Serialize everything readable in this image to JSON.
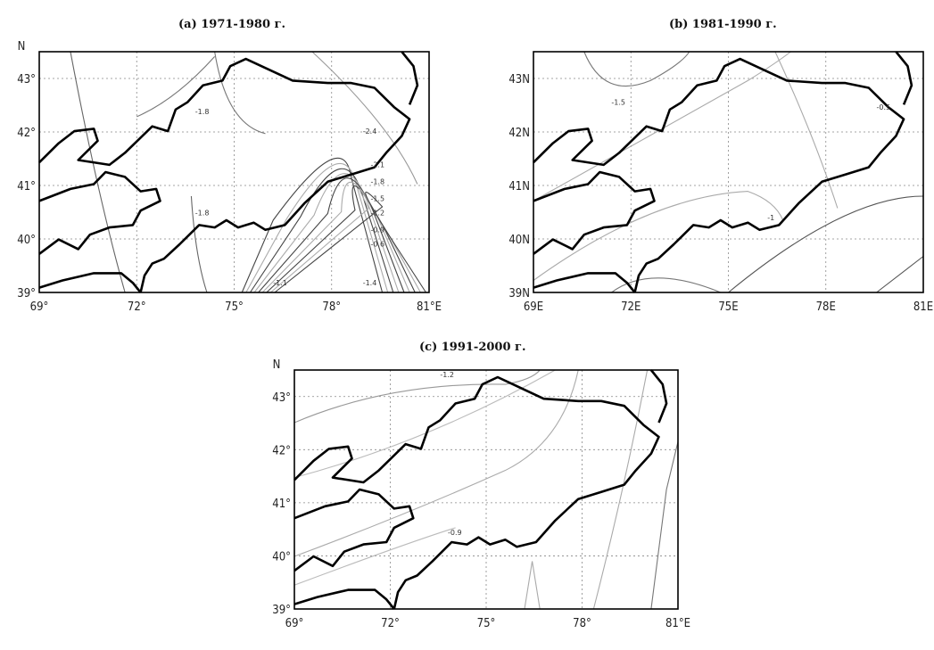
{
  "figure": {
    "panels": [
      {
        "id": "a",
        "title": "(a) 1971-1980 г.",
        "lat_ticks": [
          "39°",
          "40°",
          "41°",
          "42°",
          "43°"
        ],
        "lon_ticks": [
          "69°",
          "72°",
          "75°",
          "78°",
          "81°E"
        ],
        "north_label": "N",
        "contour_labels": [
          "-1.8",
          "-1.8",
          "-2.4",
          "-2.1",
          "-1.8",
          "-1.5",
          "-1.2",
          "-0.9",
          "-0.6",
          "-1.1",
          "-1.4"
        ]
      },
      {
        "id": "b",
        "title": "(b) 1981-1990 г.",
        "lat_ticks": [
          "39N",
          "40N",
          "41N",
          "42N",
          "43N"
        ],
        "lon_ticks": [
          "69E",
          "72E",
          "75E",
          "78E",
          "81E"
        ],
        "north_label": "",
        "contour_labels": [
          "-1.5",
          "-0.5",
          "-1"
        ]
      },
      {
        "id": "c",
        "title": "(c) 1991-2000 г.",
        "lat_ticks": [
          "39°",
          "40°",
          "41°",
          "42°",
          "43°"
        ],
        "lon_ticks": [
          "69°",
          "72°",
          "75°",
          "78°",
          "81°E"
        ],
        "north_label": "N",
        "contour_labels": [
          "-1.2",
          "-0.9"
        ]
      }
    ],
    "map_extent": {
      "lon": [
        69,
        81
      ],
      "lat": [
        39,
        43.5
      ]
    },
    "colors": {
      "border": "#000000",
      "contour_dark": "#444444",
      "contour_light": "#aaaaaa",
      "grid": "#888888"
    }
  }
}
